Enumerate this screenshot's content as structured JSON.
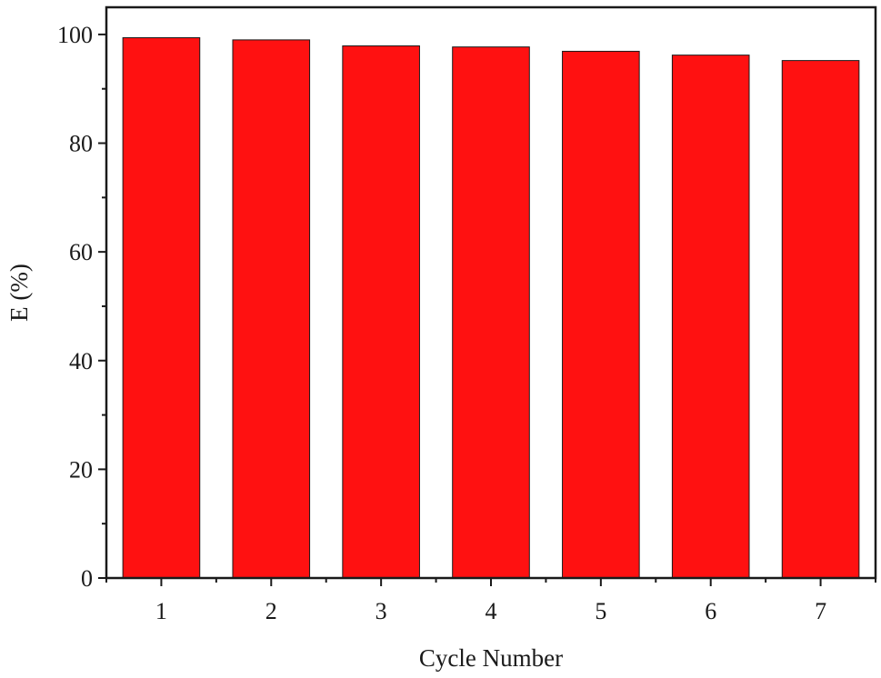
{
  "chart_data": {
    "type": "bar",
    "categories": [
      "1",
      "2",
      "3",
      "4",
      "5",
      "6",
      "7"
    ],
    "values": [
      99.4,
      99.0,
      97.9,
      97.7,
      96.9,
      96.2,
      95.2
    ],
    "xlabel": "Cycle Number",
    "ylabel": "E (%)",
    "ylim": [
      0,
      105
    ],
    "yticks": [
      0,
      20,
      40,
      60,
      80,
      100
    ],
    "grid": false,
    "bar_color": "#ff1111",
    "bar_edge_color": "#1a1a1a",
    "axis_color": "#1a1a1a"
  }
}
